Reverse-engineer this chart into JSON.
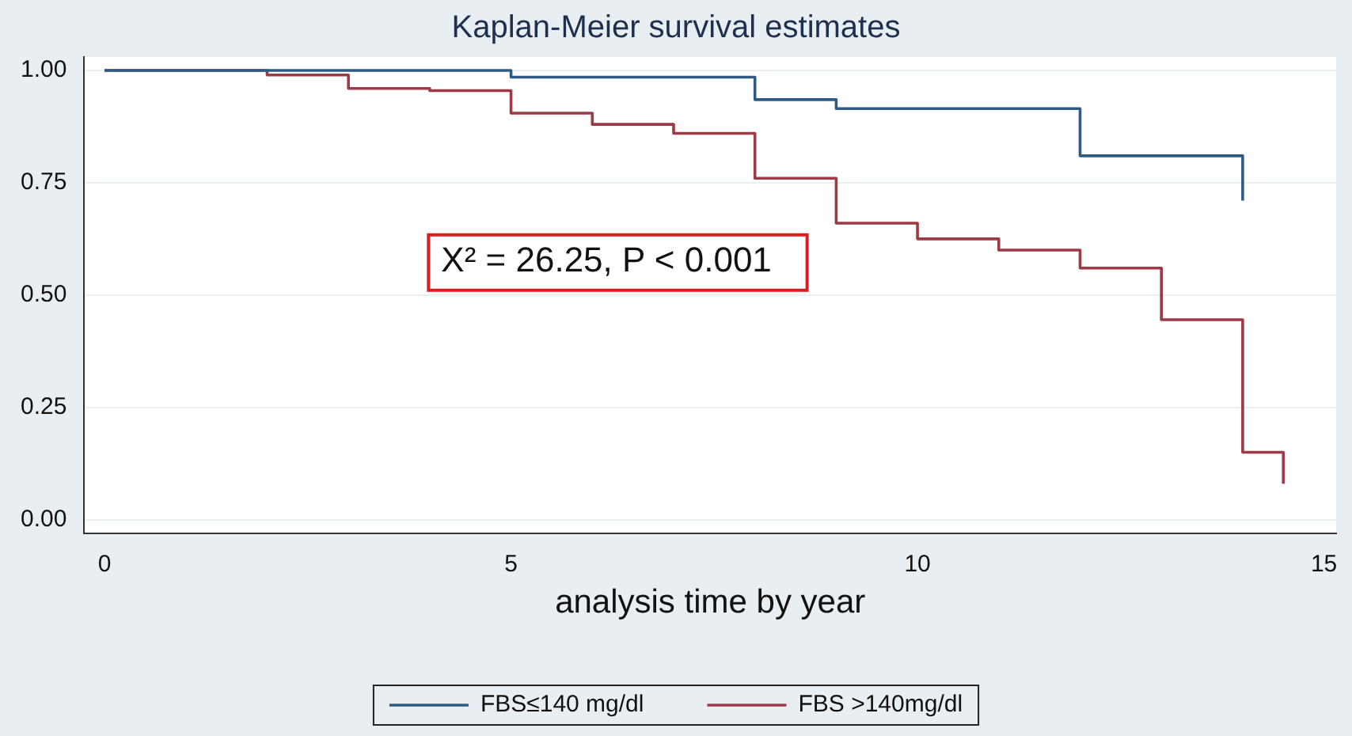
{
  "chart_data": {
    "type": "step",
    "title": "Kaplan-Meier survival estimates",
    "xlabel": "analysis time by year",
    "annotations": [
      "X² = 26.25, P < 0.001"
    ],
    "series": [
      {
        "name": "FBS≤140 mg/dl",
        "color": "#2f5a84",
        "x": [
          0,
          5,
          8,
          9,
          12,
          14
        ],
        "values": [
          1.0,
          0.985,
          0.935,
          0.915,
          0.81,
          0.71
        ]
      },
      {
        "name": "FBS >140mg/dl",
        "color": "#9e3a45",
        "x": [
          0,
          2,
          3,
          4,
          5,
          6,
          7,
          8,
          9,
          10,
          11,
          12,
          13,
          14,
          14.5
        ],
        "values": [
          1.0,
          0.99,
          0.96,
          0.955,
          0.905,
          0.88,
          0.86,
          0.76,
          0.66,
          0.625,
          0.6,
          0.56,
          0.445,
          0.15,
          0.08
        ]
      }
    ],
    "xlim": [
      -0.25,
      15.15
    ],
    "xticks": [
      0,
      5,
      10,
      15
    ],
    "ylim": [
      -0.03,
      1.03
    ],
    "yticks": [
      {
        "value": 0,
        "label": "0.00"
      },
      {
        "value": 0.25,
        "label": "0.25"
      },
      {
        "value": 0.5,
        "label": "0.50"
      },
      {
        "value": 0.75,
        "label": "0.75"
      },
      {
        "value": 1,
        "label": "1.00"
      }
    ],
    "grid": "y",
    "legend": "bottom",
    "line_style": "solid",
    "marker": "none"
  }
}
